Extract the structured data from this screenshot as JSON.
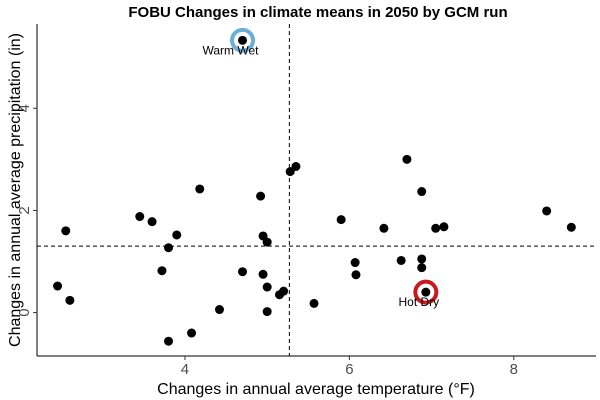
{
  "chart_data": {
    "type": "scatter",
    "title": "FOBU Changes in climate means in 2050 by GCM run",
    "xlabel": "Changes in annual average temperature (°F)",
    "ylabel": "Changes in annual average precipitation (in)",
    "xlim": [
      2.2,
      9.0
    ],
    "ylim": [
      -0.85,
      5.65
    ],
    "x_ticks": [
      4,
      6,
      8
    ],
    "y_ticks": [
      0,
      2,
      4
    ],
    "grid": false,
    "ref_lines": {
      "x": 5.27,
      "y": 1.3
    },
    "colors": {
      "points": "#000000",
      "warm_wet_ring": "#6baed6",
      "hot_dry_ring": "#cb181d"
    },
    "points": [
      {
        "x": 2.45,
        "y": 0.52
      },
      {
        "x": 2.55,
        "y": 1.6
      },
      {
        "x": 2.6,
        "y": 0.24
      },
      {
        "x": 3.45,
        "y": 1.88
      },
      {
        "x": 3.6,
        "y": 1.78
      },
      {
        "x": 3.72,
        "y": 0.82
      },
      {
        "x": 3.8,
        "y": 1.27
      },
      {
        "x": 3.8,
        "y": -0.56
      },
      {
        "x": 3.9,
        "y": 1.52
      },
      {
        "x": 4.08,
        "y": -0.4
      },
      {
        "x": 4.18,
        "y": 2.42
      },
      {
        "x": 4.42,
        "y": 0.06
      },
      {
        "x": 4.7,
        "y": 0.8
      },
      {
        "x": 4.92,
        "y": 2.28
      },
      {
        "x": 4.95,
        "y": 1.5
      },
      {
        "x": 4.95,
        "y": 0.75
      },
      {
        "x": 5.0,
        "y": 1.38
      },
      {
        "x": 5.0,
        "y": 0.5
      },
      {
        "x": 5.0,
        "y": 0.02
      },
      {
        "x": 5.15,
        "y": 0.35
      },
      {
        "x": 5.2,
        "y": 0.42
      },
      {
        "x": 5.28,
        "y": 2.76
      },
      {
        "x": 5.35,
        "y": 2.86
      },
      {
        "x": 5.57,
        "y": 0.18
      },
      {
        "x": 5.9,
        "y": 1.82
      },
      {
        "x": 6.07,
        "y": 0.98
      },
      {
        "x": 6.08,
        "y": 0.74
      },
      {
        "x": 6.42,
        "y": 1.65
      },
      {
        "x": 6.63,
        "y": 1.02
      },
      {
        "x": 6.7,
        "y": 3.0
      },
      {
        "x": 6.88,
        "y": 2.37
      },
      {
        "x": 6.88,
        "y": 1.05
      },
      {
        "x": 6.88,
        "y": 0.88
      },
      {
        "x": 7.05,
        "y": 1.65
      },
      {
        "x": 7.15,
        "y": 1.68
      },
      {
        "x": 8.4,
        "y": 1.99
      },
      {
        "x": 8.7,
        "y": 1.67
      }
    ],
    "highlighted": [
      {
        "label": "Warm Wet",
        "x": 4.7,
        "y": 5.33,
        "color_key": "warm_wet_ring",
        "label_position": "below"
      },
      {
        "label": "Hot Dry",
        "x": 6.93,
        "y": 0.4,
        "color_key": "hot_dry_ring",
        "label_position": "below-left"
      }
    ]
  }
}
